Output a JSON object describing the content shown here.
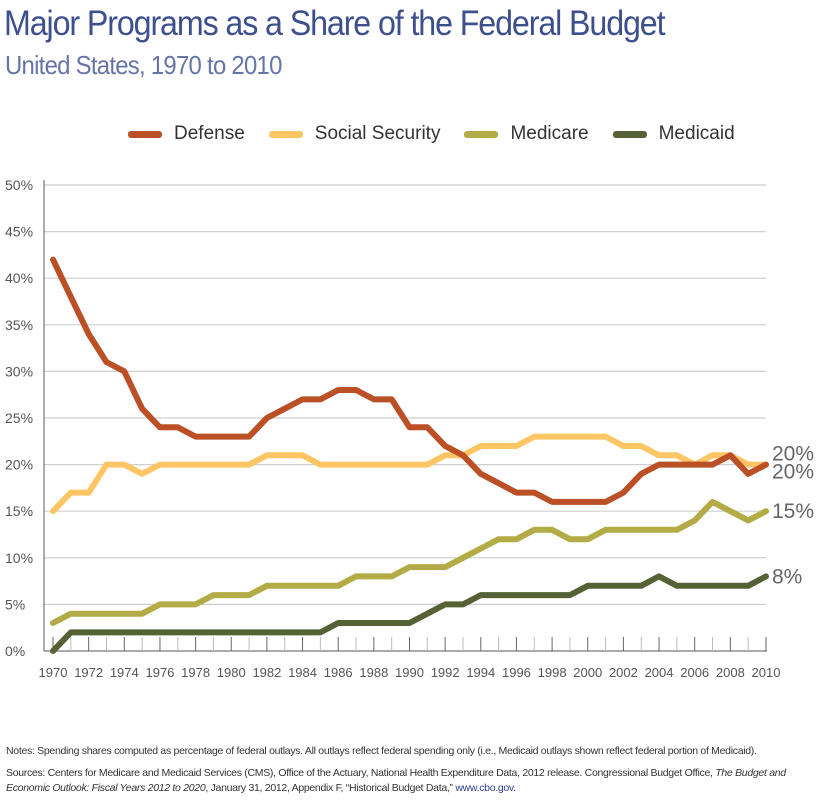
{
  "title": "Major Programs as a Share of the Federal Budget",
  "subtitle": "United States, 1970 to 2010",
  "notes": "Notes: Spending shares computed as percentage of federal outlays. All outlays reflect federal spending only (i.e., Medicaid outlays shown reflect federal portion of Medicaid).",
  "sources": {
    "part1": "Sources: Centers for Medicare and Medicaid Services (CMS), Office of the Actuary, National Health Expenditure Data, 2012 release. Congressional Budget Office,",
    "italic1": "The Budget and",
    "italic2": "Economic Outlook: Fiscal Years 2012 to 2020",
    "part2": ", January 31, 2012, Appendix F, “Historical Budget Data,”",
    "link": "www.cbo.gov."
  },
  "chart_data": {
    "type": "line",
    "x": [
      1970,
      1971,
      1972,
      1973,
      1974,
      1975,
      1976,
      1977,
      1978,
      1979,
      1980,
      1981,
      1982,
      1983,
      1984,
      1985,
      1986,
      1987,
      1988,
      1989,
      1990,
      1991,
      1992,
      1993,
      1994,
      1995,
      1996,
      1997,
      1998,
      1999,
      2000,
      2001,
      2002,
      2003,
      2004,
      2005,
      2006,
      2007,
      2008,
      2009,
      2010
    ],
    "ylim": [
      0,
      50
    ],
    "y_ticks": [
      "0%",
      "5%",
      "10%",
      "15%",
      "20%",
      "25%",
      "30%",
      "35%",
      "40%",
      "45%",
      "50%"
    ],
    "x_tick_labels": [
      "1970",
      "1972",
      "1974",
      "1976",
      "1978",
      "1980",
      "1982",
      "1984",
      "1986",
      "1988",
      "1990",
      "1992",
      "1994",
      "1996",
      "1998",
      "2000",
      "2002",
      "2004",
      "2006",
      "2008",
      "2010"
    ],
    "grid": "horizontal",
    "legend": "top",
    "series": [
      {
        "name": "Defense",
        "color": "#bb4f26",
        "end_label": "20%",
        "values": [
          42,
          38,
          34,
          31,
          30,
          26,
          24,
          24,
          23,
          23,
          23,
          23,
          25,
          26,
          27,
          27,
          28,
          28,
          27,
          27,
          24,
          24,
          22,
          21,
          19,
          18,
          17,
          17,
          16,
          16,
          16,
          16,
          17,
          19,
          20,
          20,
          20,
          20,
          21,
          19,
          20
        ]
      },
      {
        "name": "Social Security",
        "color": "#fdc564",
        "end_label": "20%",
        "values": [
          15,
          17,
          17,
          20,
          20,
          19,
          20,
          20,
          20,
          20,
          20,
          20,
          21,
          21,
          21,
          20,
          20,
          20,
          20,
          20,
          20,
          20,
          21,
          21,
          22,
          22,
          22,
          23,
          23,
          23,
          23,
          23,
          22,
          22,
          21,
          21,
          20,
          21,
          21,
          20,
          20
        ]
      },
      {
        "name": "Medicare",
        "color": "#b3ab45",
        "end_label": "15%",
        "values": [
          3,
          4,
          4,
          4,
          4,
          4,
          5,
          5,
          5,
          6,
          6,
          6,
          7,
          7,
          7,
          7,
          7,
          8,
          8,
          8,
          9,
          9,
          9,
          10,
          11,
          12,
          12,
          13,
          13,
          12,
          12,
          13,
          13,
          13,
          13,
          13,
          14,
          16,
          15,
          14,
          15
        ]
      },
      {
        "name": "Medicaid",
        "color": "#566136",
        "end_label": "8%",
        "values": [
          0,
          2,
          2,
          2,
          2,
          2,
          2,
          2,
          2,
          2,
          2,
          2,
          2,
          2,
          2,
          2,
          3,
          3,
          3,
          3,
          3,
          4,
          5,
          5,
          6,
          6,
          6,
          6,
          6,
          6,
          7,
          7,
          7,
          7,
          8,
          7,
          7,
          7,
          7,
          7,
          8
        ]
      }
    ]
  }
}
